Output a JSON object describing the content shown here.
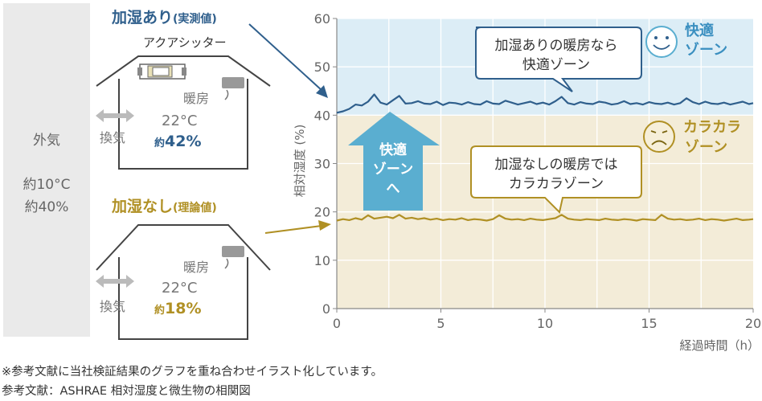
{
  "outside": {
    "label": "外気",
    "temp": "約10°C",
    "humidity": "約40%"
  },
  "room_with": {
    "title": "加湿あり",
    "title_note": "(実測値)",
    "device_label": "アクアシッター",
    "heater_label": "暖房",
    "vent_label": "換気",
    "temp": "22°C",
    "humidity_prefix": "約",
    "humidity_value": "42%"
  },
  "room_without": {
    "title": "加湿なし",
    "title_note": "(理論値)",
    "heater_label": "暖房",
    "vent_label": "換気",
    "temp": "22°C",
    "humidity_prefix": "約",
    "humidity_value": "18%"
  },
  "colors": {
    "blue": "#2f5f8c",
    "gold": "#b09024",
    "comfort_zone": "#dcedf6",
    "dry_zone": "#f3ecd8",
    "arrow": "#5aaed0"
  },
  "chart_data": {
    "type": "line",
    "ylabel": "相対湿度 (%)",
    "xlabel": "経過時間（h）",
    "xlim": [
      0,
      20
    ],
    "ylim": [
      0,
      60
    ],
    "xticks": [
      0,
      5,
      10,
      15,
      20
    ],
    "yticks": [
      0,
      10,
      20,
      30,
      40,
      50,
      60
    ],
    "grid": true,
    "zones": [
      {
        "name": "快適ゾーン",
        "from": 40,
        "to": 60,
        "icon": "smile-face-icon"
      },
      {
        "name": "カラカラゾーン",
        "from": 0,
        "to": 40,
        "icon": "frown-face-icon"
      }
    ],
    "series": [
      {
        "name": "加湿あり",
        "color": "#2f5f8c",
        "x": [
          0,
          0.3,
          0.6,
          0.9,
          1.2,
          1.5,
          1.8,
          2.1,
          2.4,
          2.7,
          3.0,
          3.3,
          3.6,
          3.9,
          4.2,
          4.5,
          4.8,
          5.1,
          5.4,
          5.7,
          6.0,
          6.3,
          6.6,
          6.9,
          7.2,
          7.5,
          7.8,
          8.1,
          8.4,
          8.7,
          9.0,
          9.3,
          9.6,
          9.9,
          10.2,
          10.5,
          10.8,
          11.1,
          11.4,
          11.7,
          12.0,
          12.3,
          12.6,
          12.9,
          13.2,
          13.5,
          13.8,
          14.1,
          14.4,
          14.7,
          15.0,
          15.3,
          15.6,
          15.9,
          16.2,
          16.5,
          16.8,
          17.1,
          17.4,
          17.7,
          18.0,
          18.3,
          18.6,
          18.9,
          19.2,
          19.5,
          19.8,
          20.0
        ],
        "y": [
          40.5,
          40.8,
          41.3,
          42.2,
          42.0,
          42.8,
          44.3,
          42.6,
          42.2,
          43.1,
          44.0,
          42.4,
          42.5,
          42.9,
          42.4,
          42.3,
          42.8,
          42.1,
          42.6,
          42.5,
          42.2,
          42.7,
          42.3,
          42.2,
          42.9,
          42.4,
          42.3,
          43.0,
          42.6,
          42.2,
          42.5,
          42.8,
          42.3,
          42.6,
          42.2,
          42.9,
          43.8,
          42.5,
          42.2,
          42.7,
          42.4,
          42.3,
          42.8,
          42.6,
          42.2,
          42.4,
          42.9,
          42.3,
          42.5,
          42.2,
          42.7,
          42.4,
          42.3,
          42.6,
          42.2,
          42.5,
          43.5,
          42.7,
          42.3,
          42.8,
          42.4,
          42.3,
          42.6,
          42.2,
          42.5,
          42.8,
          42.3,
          42.5
        ]
      },
      {
        "name": "加湿なし",
        "color": "#b09024",
        "x": [
          0,
          0.3,
          0.6,
          0.9,
          1.2,
          1.5,
          1.8,
          2.1,
          2.4,
          2.7,
          3.0,
          3.3,
          3.6,
          3.9,
          4.2,
          4.5,
          4.8,
          5.1,
          5.4,
          5.7,
          6.0,
          6.3,
          6.6,
          6.9,
          7.2,
          7.5,
          7.8,
          8.1,
          8.4,
          8.7,
          9.0,
          9.3,
          9.6,
          9.9,
          10.2,
          10.5,
          10.8,
          11.1,
          11.4,
          11.7,
          12.0,
          12.3,
          12.6,
          12.9,
          13.2,
          13.5,
          13.8,
          14.1,
          14.4,
          14.7,
          15.0,
          15.3,
          15.6,
          15.9,
          16.2,
          16.5,
          16.8,
          17.1,
          17.4,
          17.7,
          18.0,
          18.3,
          18.6,
          18.9,
          19.2,
          19.5,
          19.8,
          20.0
        ],
        "y": [
          18.2,
          18.5,
          18.3,
          18.7,
          18.4,
          19.3,
          18.6,
          18.8,
          19.0,
          18.7,
          19.4,
          18.6,
          18.8,
          18.5,
          18.7,
          18.4,
          18.6,
          18.3,
          18.5,
          18.4,
          18.7,
          18.3,
          18.5,
          18.4,
          18.2,
          18.5,
          19.3,
          18.6,
          18.4,
          18.5,
          18.3,
          18.6,
          18.4,
          18.3,
          18.5,
          18.7,
          19.4,
          18.6,
          18.4,
          18.3,
          18.5,
          18.4,
          18.3,
          18.6,
          18.4,
          18.3,
          18.5,
          18.4,
          18.2,
          18.5,
          18.4,
          18.3,
          19.4,
          18.6,
          18.4,
          18.5,
          18.3,
          18.4,
          18.6,
          18.3,
          18.5,
          18.4,
          18.2,
          18.4,
          18.6,
          18.3,
          18.4,
          18.5
        ]
      }
    ],
    "annotations": [
      {
        "text_line1": "加湿ありの暖房なら",
        "text_line2": "快適ゾーン",
        "series": "加湿あり"
      },
      {
        "text_line1": "加湿なしの暖房では",
        "text_line2": "カラカラゾーン",
        "series": "加湿なし"
      }
    ],
    "big_arrow": {
      "line1": "快適",
      "line2": "ゾーン",
      "line3": "へ"
    }
  },
  "note": {
    "line1": "※参考文献に当社検証結果のグラフを重ね合わせイラスト化しています。",
    "line2": "参考文献：ASHRAE 相対湿度と微生物の相関図"
  }
}
